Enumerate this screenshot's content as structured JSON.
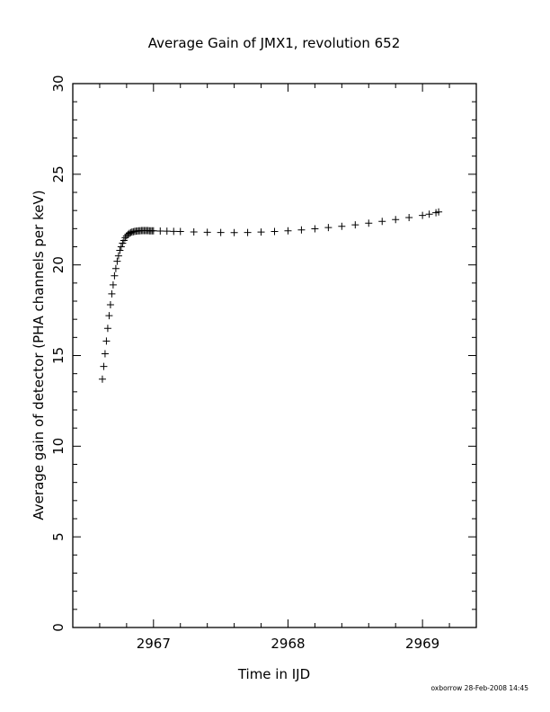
{
  "chart_data": {
    "type": "scatter",
    "title": "Average Gain of JMX1, revolution 652",
    "xlabel": "Time in IJD",
    "ylabel": "Average gain of detector (PHA channels per keV)",
    "xlim": [
      2966.4,
      2969.4
    ],
    "ylim": [
      0,
      30
    ],
    "x_ticks": [
      2967,
      2968,
      2969
    ],
    "y_ticks": [
      0,
      5,
      10,
      15,
      20,
      25,
      30
    ],
    "x_tick_labels": [
      "2967",
      "2968",
      "2969"
    ],
    "y_tick_labels": [
      "0",
      "5",
      "10",
      "15",
      "20",
      "25",
      "30"
    ],
    "marker": "plus",
    "grid": false,
    "footer": "oxborrow 28-Feb-2008 14:45",
    "series": [
      {
        "x": [
          2966.62,
          2966.63,
          2966.64,
          2966.65,
          2966.66,
          2966.67,
          2966.68,
          2966.69,
          2966.7,
          2966.71,
          2966.72,
          2966.73,
          2966.74,
          2966.75,
          2966.76,
          2966.77,
          2966.78,
          2966.79,
          2966.8,
          2966.81,
          2966.82,
          2966.83,
          2966.84,
          2966.85,
          2966.86,
          2966.87,
          2966.88,
          2966.89,
          2966.9,
          2966.91,
          2966.92,
          2966.93,
          2966.94,
          2966.95,
          2966.96,
          2966.97,
          2966.98,
          2966.99,
          2967.0,
          2967.05,
          2967.1,
          2967.15,
          2967.2,
          2967.3,
          2967.4,
          2967.5,
          2967.6,
          2967.7,
          2967.8,
          2967.9,
          2968.0,
          2968.1,
          2968.2,
          2968.3,
          2968.4,
          2968.5,
          2968.6,
          2968.7,
          2968.8,
          2968.9,
          2969.0,
          2969.05,
          2969.1,
          2969.12
        ],
        "y": [
          13.7,
          14.4,
          15.1,
          15.8,
          16.5,
          17.2,
          17.8,
          18.4,
          18.9,
          19.4,
          19.8,
          20.2,
          20.5,
          20.8,
          21.0,
          21.2,
          21.35,
          21.5,
          21.6,
          21.68,
          21.74,
          21.78,
          21.81,
          21.83,
          21.85,
          21.86,
          21.87,
          21.88,
          21.88,
          21.89,
          21.89,
          21.89,
          21.89,
          21.89,
          21.89,
          21.88,
          21.88,
          21.88,
          21.88,
          21.87,
          21.86,
          21.85,
          21.84,
          21.82,
          21.8,
          21.79,
          21.78,
          21.79,
          21.81,
          21.84,
          21.88,
          21.93,
          21.99,
          22.06,
          22.13,
          22.21,
          22.3,
          22.4,
          22.5,
          22.61,
          22.73,
          22.8,
          22.88,
          22.92
        ]
      }
    ]
  }
}
